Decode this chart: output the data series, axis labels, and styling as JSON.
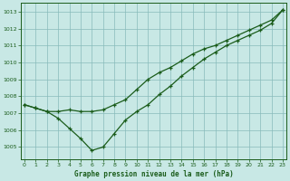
{
  "title": "Graphe pression niveau de la mer (hPa)",
  "bg_color": "#c8e8e5",
  "grid_color": "#88bbbb",
  "line_color": "#1a5c1a",
  "xlim": [
    -0.3,
    23.3
  ],
  "ylim": [
    1004.3,
    1013.5
  ],
  "yticks": [
    1005,
    1006,
    1007,
    1008,
    1009,
    1010,
    1011,
    1012,
    1013
  ],
  "xticks": [
    0,
    1,
    2,
    3,
    4,
    5,
    6,
    7,
    8,
    9,
    10,
    11,
    12,
    13,
    14,
    15,
    16,
    17,
    18,
    19,
    20,
    21,
    22,
    23
  ],
  "line1_x": [
    0,
    1,
    2,
    3,
    4,
    5,
    6,
    7,
    8,
    9,
    10,
    11,
    12,
    13,
    14,
    15,
    16,
    17,
    18,
    19,
    20,
    21,
    22,
    23
  ],
  "line1_y": [
    1007.5,
    1007.3,
    1007.1,
    1007.1,
    1007.2,
    1007.1,
    1007.1,
    1007.2,
    1007.5,
    1007.8,
    1008.4,
    1009.0,
    1009.4,
    1009.7,
    1010.1,
    1010.5,
    1010.8,
    1011.0,
    1011.3,
    1011.6,
    1011.9,
    1012.2,
    1012.5,
    1013.1
  ],
  "line2_x": [
    0,
    1,
    2,
    3,
    4,
    5,
    6,
    7,
    8,
    9,
    10,
    11,
    12,
    13,
    14,
    15,
    16,
    17,
    18,
    19,
    20,
    21,
    22,
    23
  ],
  "line2_y": [
    1007.5,
    1007.3,
    1007.1,
    1006.7,
    1006.1,
    1005.5,
    1004.8,
    1005.0,
    1005.8,
    1006.6,
    1007.1,
    1007.5,
    1008.1,
    1008.6,
    1009.2,
    1009.7,
    1010.2,
    1010.6,
    1011.0,
    1011.3,
    1011.6,
    1011.9,
    1012.3,
    1013.1
  ]
}
